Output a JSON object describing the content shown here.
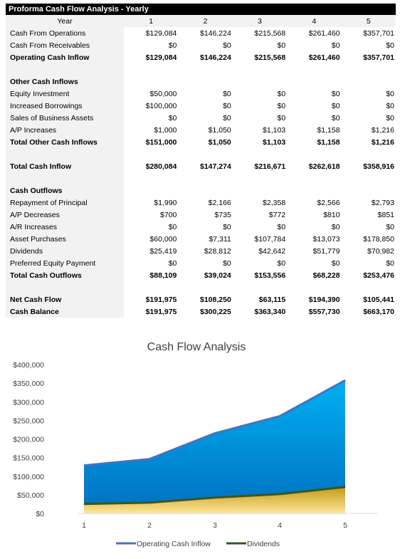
{
  "sheet": {
    "title": "Proforma Cash Flow Analysis - Yearly",
    "header": {
      "label": "Year",
      "years": [
        "1",
        "2",
        "3",
        "4",
        "5"
      ]
    },
    "rows": [
      {
        "label": "Cash From Operations",
        "values": [
          "$129,084",
          "$146,224",
          "$215,568",
          "$261,460",
          "$357,701"
        ],
        "bold": false
      },
      {
        "label": "Cash From Receivables",
        "values": [
          "$0",
          "$0",
          "$0",
          "$0",
          "$0"
        ],
        "bold": false
      },
      {
        "label": "Operating Cash Inflow",
        "values": [
          "$129,084",
          "$146,224",
          "$215,568",
          "$261,460",
          "$357,701"
        ],
        "bold": true
      },
      {
        "label": "",
        "values": [
          "",
          "",
          "",
          "",
          ""
        ],
        "bold": false
      },
      {
        "label": "Other Cash Inflows",
        "values": [
          "",
          "",
          "",
          "",
          ""
        ],
        "bold": true
      },
      {
        "label": "Equity Investment",
        "values": [
          "$50,000",
          "$0",
          "$0",
          "$0",
          "$0"
        ],
        "bold": false
      },
      {
        "label": "Increased Borrowings",
        "values": [
          "$100,000",
          "$0",
          "$0",
          "$0",
          "$0"
        ],
        "bold": false
      },
      {
        "label": "Sales of Business Assets",
        "values": [
          "$0",
          "$0",
          "$0",
          "$0",
          "$0"
        ],
        "bold": false
      },
      {
        "label": "A/P Increases",
        "values": [
          "$1,000",
          "$1,050",
          "$1,103",
          "$1,158",
          "$1,216"
        ],
        "bold": false
      },
      {
        "label": "Total Other Cash Inflows",
        "values": [
          "$151,000",
          "$1,050",
          "$1,103",
          "$1,158",
          "$1,216"
        ],
        "bold": true
      },
      {
        "label": "",
        "values": [
          "",
          "",
          "",
          "",
          ""
        ],
        "bold": false
      },
      {
        "label": "Total Cash Inflow",
        "values": [
          "$280,084",
          "$147,274",
          "$216,671",
          "$262,618",
          "$358,916"
        ],
        "bold": true
      },
      {
        "label": "",
        "values": [
          "",
          "",
          "",
          "",
          ""
        ],
        "bold": false
      },
      {
        "label": "Cash Outflows",
        "values": [
          "",
          "",
          "",
          "",
          ""
        ],
        "bold": true
      },
      {
        "label": "Repayment of Principal",
        "values": [
          "$1,990",
          "$2,166",
          "$2,358",
          "$2,566",
          "$2,793"
        ],
        "bold": false
      },
      {
        "label": "A/P Decreases",
        "values": [
          "$700",
          "$735",
          "$772",
          "$810",
          "$851"
        ],
        "bold": false
      },
      {
        "label": "A/R Increases",
        "values": [
          "$0",
          "$0",
          "$0",
          "$0",
          "$0"
        ],
        "bold": false
      },
      {
        "label": "Asset Purchases",
        "values": [
          "$60,000",
          "$7,311",
          "$107,784",
          "$13,073",
          "$178,850"
        ],
        "bold": false
      },
      {
        "label": "Dividends",
        "values": [
          "$25,419",
          "$28,812",
          "$42,642",
          "$51,779",
          "$70,982"
        ],
        "bold": false
      },
      {
        "label": "Preferred Equity Payment",
        "values": [
          "$0",
          "$0",
          "$0",
          "$0",
          "$0"
        ],
        "bold": false
      },
      {
        "label": "Total Cash Outflows",
        "values": [
          "$88,109",
          "$39,024",
          "$153,556",
          "$68,228",
          "$253,476"
        ],
        "bold": true
      },
      {
        "label": "",
        "values": [
          "",
          "",
          "",
          "",
          ""
        ],
        "bold": false
      },
      {
        "label": "Net Cash Flow",
        "values": [
          "$191,975",
          "$108,250",
          "$63,115",
          "$194,390",
          "$105,441"
        ],
        "bold": true
      },
      {
        "label": "Cash Balance",
        "values": [
          "$191,975",
          "$300,225",
          "$363,340",
          "$557,730",
          "$663,170"
        ],
        "bold": true
      }
    ]
  },
  "chart_data": {
    "type": "area",
    "title": "Cash Flow Analysis",
    "x": [
      "1",
      "2",
      "3",
      "4",
      "5"
    ],
    "series": [
      {
        "name": "Operating Cash Inflow",
        "values": [
          129084,
          146224,
          215568,
          261460,
          357701
        ],
        "line_color": "#4472c4",
        "fill_top": "#00b0f0",
        "fill_bottom": "#0070c0"
      },
      {
        "name": "Dividends",
        "values": [
          25419,
          28812,
          42642,
          51779,
          70982
        ],
        "line_color": "#375623",
        "fill_top": "#c49a16",
        "fill_bottom": "#ffe699"
      }
    ],
    "ylim": [
      0,
      400000
    ],
    "yticks": [
      "$0",
      "$50,000",
      "$100,000",
      "$150,000",
      "$200,000",
      "$250,000",
      "$300,000",
      "$350,000",
      "$400,000"
    ],
    "grid": false,
    "legend": "bottom"
  }
}
